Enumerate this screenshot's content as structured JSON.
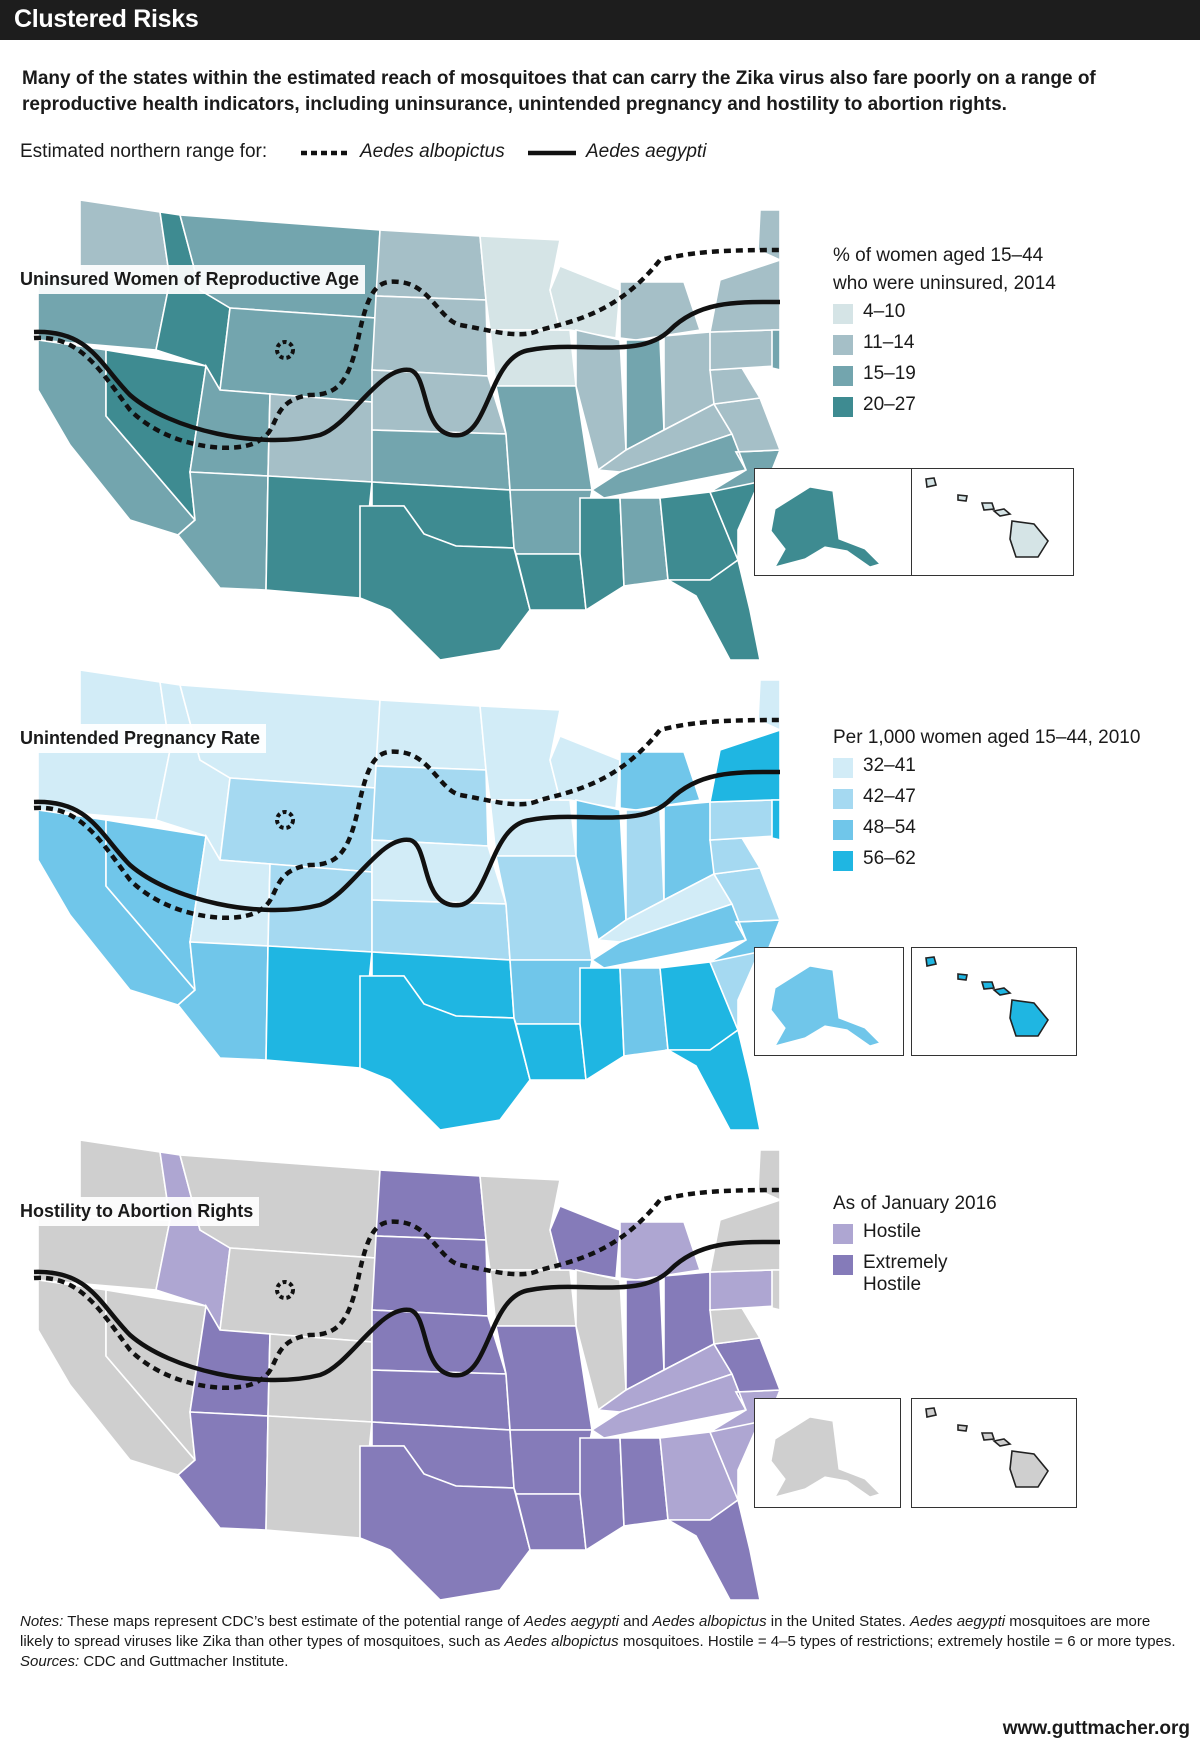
{
  "title": "Clustered Risks",
  "intro": "Many of the states within the estimated reach of mosquitoes that can carry the Zika virus also fare poorly on a range of reproductive health indicators, including uninsurance, unintended pregnancy and hostility to abortion rights.",
  "range_legend": {
    "label": "Estimated northern range for:",
    "albopictus": "Aedes albopictus",
    "aegypti": "Aedes aegypti"
  },
  "maps": [
    {
      "label": "Uninsured Women of Reproductive Age",
      "legend_title_1": "% of women aged 15–44",
      "legend_title_2": "who were uninsured, 2014",
      "classes": [
        {
          "label": "4–10",
          "color": "#d5e4e6"
        },
        {
          "label": "11–14",
          "color": "#a5bfc7"
        },
        {
          "label": "15–19",
          "color": "#73a5ae"
        },
        {
          "label": "20–27",
          "color": "#3e8b91"
        }
      ]
    },
    {
      "label": "Unintended Pregnancy Rate",
      "legend_title_1": "Per 1,000 women aged 15–44, 2010",
      "legend_title_2": "",
      "classes": [
        {
          "label": "32–41",
          "color": "#d2ecf7"
        },
        {
          "label": "42–47",
          "color": "#a5d9f1"
        },
        {
          "label": "48–54",
          "color": "#70c6ea"
        },
        {
          "label": "56–62",
          "color": "#1fb6e2"
        }
      ]
    },
    {
      "label": "Hostility to Abortion Rights",
      "legend_title_1": "As of January 2016",
      "legend_title_2": "",
      "classes": [
        {
          "label": "Hostile",
          "color": "#aea6d2"
        },
        {
          "label": "Extremely Hostile",
          "color": "#857bb9"
        }
      ],
      "no_data_color": "#cfcfcf"
    }
  ],
  "notes": {
    "notes_label": "Notes:",
    "n1": " These maps represent CDC’s best estimate of the potential range of ",
    "n2": "Aedes aegypti",
    "n3": " and ",
    "n4": "Aedes albopictus",
    "n5": " in the United States. ",
    "n6": "Aedes aegypti",
    "n7": " mosquitoes are more likely to spread viruses like Zika than other types of mosquitoes, such as ",
    "n8": "Aedes albopictus",
    "n9": " mosquitoes. Hostile = 4–5 types of restrictions; extremely hostile = 6 or more types. ",
    "sources_label": "Sources:",
    "n10": " CDC and Guttmacher Institute."
  },
  "footer": "www.guttmacher.org"
}
